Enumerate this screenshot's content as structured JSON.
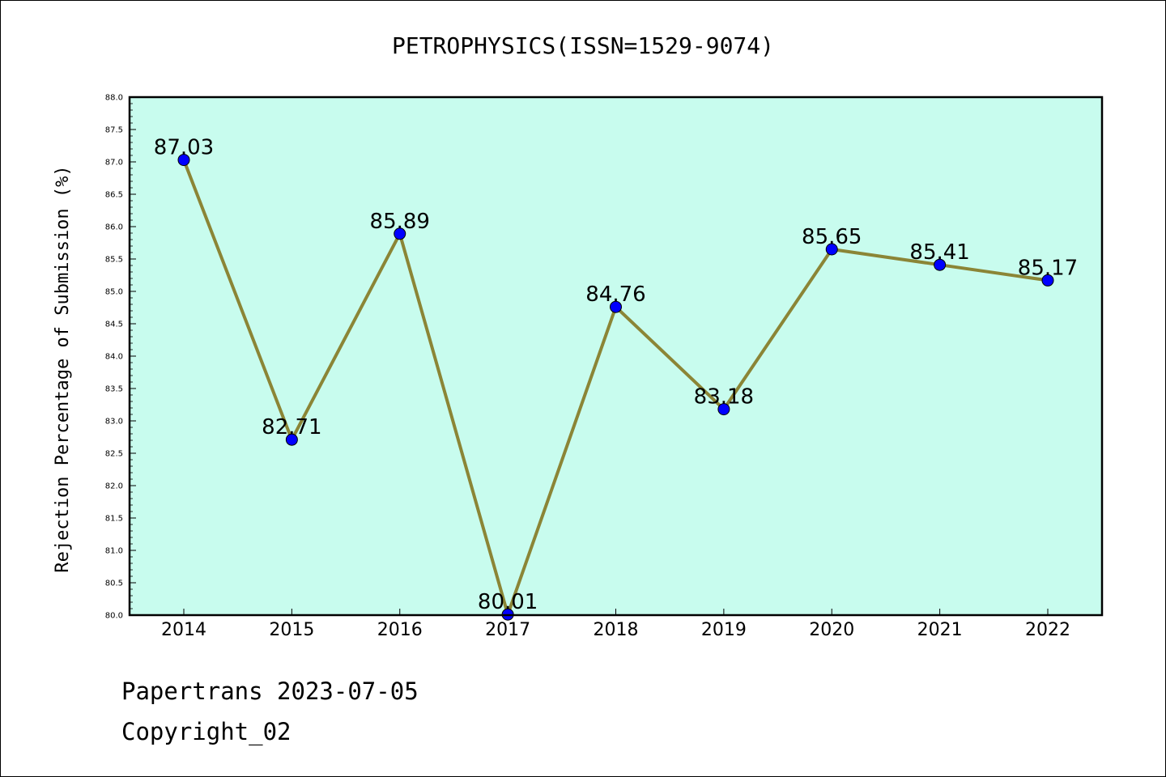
{
  "chart_data": {
    "type": "line",
    "title": "PETROPHYSICS(ISSN=1529-9074)",
    "xlabel": "",
    "ylabel": "Rejection Percentage of Submission (%)",
    "categories": [
      "2014",
      "2015",
      "2016",
      "2017",
      "2018",
      "2019",
      "2020",
      "2021",
      "2022"
    ],
    "series": [
      {
        "values": [
          87.03,
          82.71,
          85.89,
          80.01,
          84.76,
          83.18,
          85.65,
          85.41,
          85.17
        ],
        "labels": [
          "87.03",
          "82.71",
          "85.89",
          "80.01",
          "84.76",
          "83.18",
          "85.65",
          "85.41",
          "85.17"
        ]
      }
    ],
    "ylim": [
      80.0,
      88.0
    ],
    "yticks": [
      "80.0",
      "80.5",
      "81.0",
      "81.5",
      "82.0",
      "82.5",
      "83.0",
      "83.5",
      "84.0",
      "84.5",
      "85.0",
      "85.5",
      "86.0",
      "86.5",
      "87.0",
      "87.5",
      "88.0"
    ],
    "grid": false,
    "legend": "none",
    "colors": {
      "plot_background": "#c8fcee",
      "line": "#8b8536",
      "marker": "#0000ff"
    }
  },
  "footer": {
    "line1": "Papertrans 2023-07-05",
    "line2": "Copyright_02"
  }
}
